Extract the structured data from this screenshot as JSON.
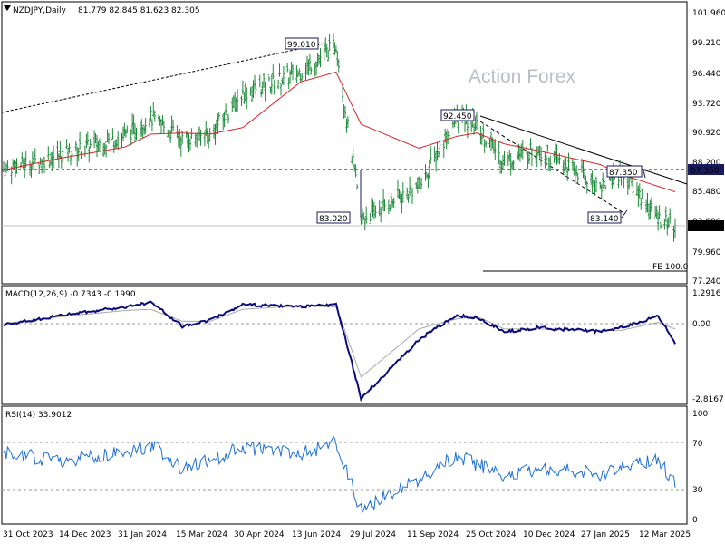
{
  "header": {
    "symbol": "NZDJPY,Daily",
    "ohlc": "81.779 82.845 81.623 82.305"
  },
  "watermark": "Action Forex",
  "price_panel": {
    "y_axis_ticks": [
      "101.960",
      "99.210",
      "96.440",
      "93.720",
      "90.920",
      "88.200",
      "85.480",
      "82.680",
      "79.960",
      "77.240"
    ],
    "current_price_label": "82.305",
    "resistance_label": "87.350",
    "fe_label": "FE 100.0",
    "annotations": [
      "99.010",
      "92.450",
      "87.350",
      "83.020",
      "83.140"
    ]
  },
  "macd_panel": {
    "title": "MACD(12,26,9) -0.7343 -0.1990",
    "y_axis_ticks": [
      "1.2916",
      "0.00",
      "-2.8167"
    ]
  },
  "rsi_panel": {
    "title": "RSI(14) 33.9012",
    "y_axis_ticks": [
      "100",
      "70",
      "30",
      "0"
    ]
  },
  "x_axis_labels": [
    "31 Oct 2023",
    "14 Dec 2023",
    "31 Jan 2024",
    "15 Mar 2024",
    "30 Apr 2024",
    "13 Jun 2024",
    "29 Jul 2024",
    "11 Sep 2024",
    "25 Oct 2024",
    "10 Dec 2024",
    "27 Jan 2025",
    "12 Mar 2025"
  ],
  "colors": {
    "price_bars": "#1f8a3a",
    "ma_line": "#d62728",
    "macd_line": "#0b0b7a",
    "signal_line": "#a9a9a9",
    "rsi_line": "#1e6fd9",
    "label_bg": "#1a1a5e",
    "current_label_bg": "#000000"
  },
  "chart_data": {
    "type": "line",
    "title": "NZDJPY,Daily",
    "ylim": [
      77.24,
      101.96
    ],
    "anchors": [
      {
        "date": "31 Oct 2023",
        "close": 87.6,
        "ma": 87.5,
        "macd": -0.05,
        "signal": 0.0,
        "rsi": 62
      },
      {
        "date": "14 Dec 2023",
        "close": 88.9,
        "ma": 88.6,
        "macd": 0.35,
        "signal": 0.3,
        "rsi": 55
      },
      {
        "date": "31 Jan 2024",
        "close": 90.6,
        "ma": 89.6,
        "macd": 0.7,
        "signal": 0.55,
        "rsi": 63
      },
      {
        "date": "20 Feb 2024",
        "close": 92.3,
        "ma": 90.8,
        "macd": 0.9,
        "signal": 0.6,
        "rsi": 70
      },
      {
        "date": "15 Mar 2024",
        "close": 90.3,
        "ma": 90.9,
        "macd": -0.1,
        "signal": 0.1,
        "rsi": 48
      },
      {
        "date": "5 Apr 2024",
        "close": 90.8,
        "ma": 90.8,
        "macd": 0.15,
        "signal": 0.1,
        "rsi": 55
      },
      {
        "date": "30 Apr 2024",
        "close": 94.5,
        "ma": 91.4,
        "macd": 0.8,
        "signal": 0.6,
        "rsi": 68
      },
      {
        "date": "13 Jun 2024",
        "close": 96.5,
        "ma": 95.6,
        "macd": 0.7,
        "signal": 0.75,
        "rsi": 62
      },
      {
        "date": "10 Jul 2024",
        "close": 99.01,
        "ma": 96.5,
        "macd": 0.8,
        "signal": 0.7,
        "rsi": 72
      },
      {
        "date": "29 Jul 2024",
        "close": 83.02,
        "ma": 91.7,
        "macd": -2.8,
        "signal": -2.0,
        "rsi": 8
      },
      {
        "date": "11 Sep 2024",
        "close": 86.0,
        "ma": 89.5,
        "macd": -0.6,
        "signal": -0.2,
        "rsi": 38
      },
      {
        "date": "10 Oct 2024",
        "close": 92.45,
        "ma": 90.6,
        "macd": 0.35,
        "signal": 0.2,
        "rsi": 60
      },
      {
        "date": "25 Oct 2024",
        "close": 91.5,
        "ma": 90.9,
        "macd": 0.25,
        "signal": 0.3,
        "rsi": 52
      },
      {
        "date": "15 Nov 2024",
        "close": 88.3,
        "ma": 89.9,
        "macd": -0.3,
        "signal": -0.2,
        "rsi": 40
      },
      {
        "date": "10 Dec 2024",
        "close": 89.5,
        "ma": 89.3,
        "macd": -0.15,
        "signal": -0.2,
        "rsi": 48
      },
      {
        "date": "27 Jan 2025",
        "close": 86.0,
        "ma": 88.0,
        "macd": -0.3,
        "signal": -0.25,
        "rsi": 42
      },
      {
        "date": "12 Feb 2025",
        "close": 87.35,
        "ma": 87.1,
        "macd": -0.15,
        "signal": -0.25,
        "rsi": 48
      },
      {
        "date": "12 Mar 2025",
        "close": 83.14,
        "ma": 86.0,
        "macd": 0.3,
        "signal": 0.05,
        "rsi": 55
      },
      {
        "date": "25 Mar 2025",
        "close": 82.305,
        "ma": 85.5,
        "macd": -0.7343,
        "signal": -0.199,
        "rsi": 33.9
      }
    ]
  }
}
